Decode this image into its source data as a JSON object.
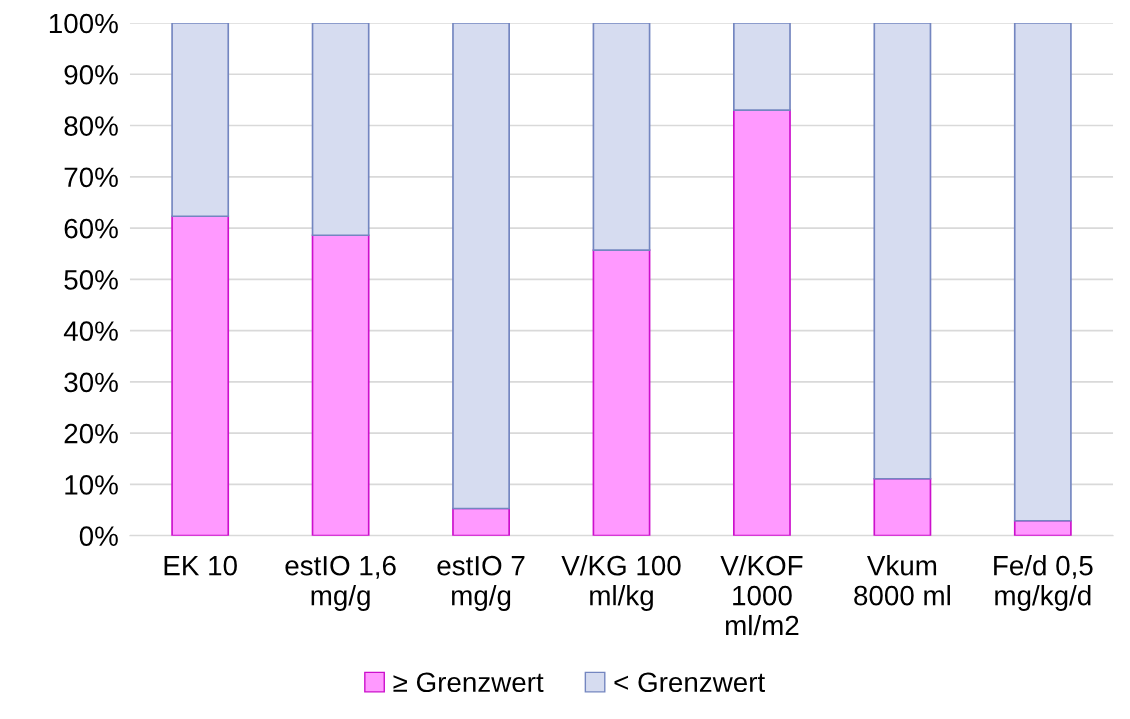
{
  "chart_data": {
    "type": "bar",
    "stacked": true,
    "categories": [
      "EK 10",
      "estIO 1,6\nmg/g",
      "estIO 7\nmg/g",
      "V/KG 100\nml/kg",
      "V/KOF\n1000\nml/m2",
      "Vkum\n8000 ml",
      "Fe/d 0,5\nmg/kg/d"
    ],
    "series": [
      {
        "name": "≥ Grenzwert",
        "color": "#ff99ff",
        "values": [
          62.3,
          58.6,
          5.3,
          55.7,
          83.0,
          11.1,
          2.9
        ]
      },
      {
        "name": "< Grenzwert",
        "color": "#d6dcf0",
        "values": [
          37.7,
          41.4,
          94.7,
          44.3,
          17.0,
          88.9,
          97.1
        ]
      }
    ],
    "ylim": [
      0,
      100
    ],
    "yticks": [
      {
        "value": 0,
        "label": "0%"
      },
      {
        "value": 10,
        "label": "10%"
      },
      {
        "value": 20,
        "label": "20%"
      },
      {
        "value": 30,
        "label": "30%"
      },
      {
        "value": 40,
        "label": "40%"
      },
      {
        "value": 50,
        "label": "50%"
      },
      {
        "value": 60,
        "label": "60%"
      },
      {
        "value": 70,
        "label": "70%"
      },
      {
        "value": 80,
        "label": "80%"
      },
      {
        "value": 90,
        "label": "90%"
      },
      {
        "value": 100,
        "label": "100%"
      }
    ],
    "grid": "y",
    "legend": "bottom"
  }
}
